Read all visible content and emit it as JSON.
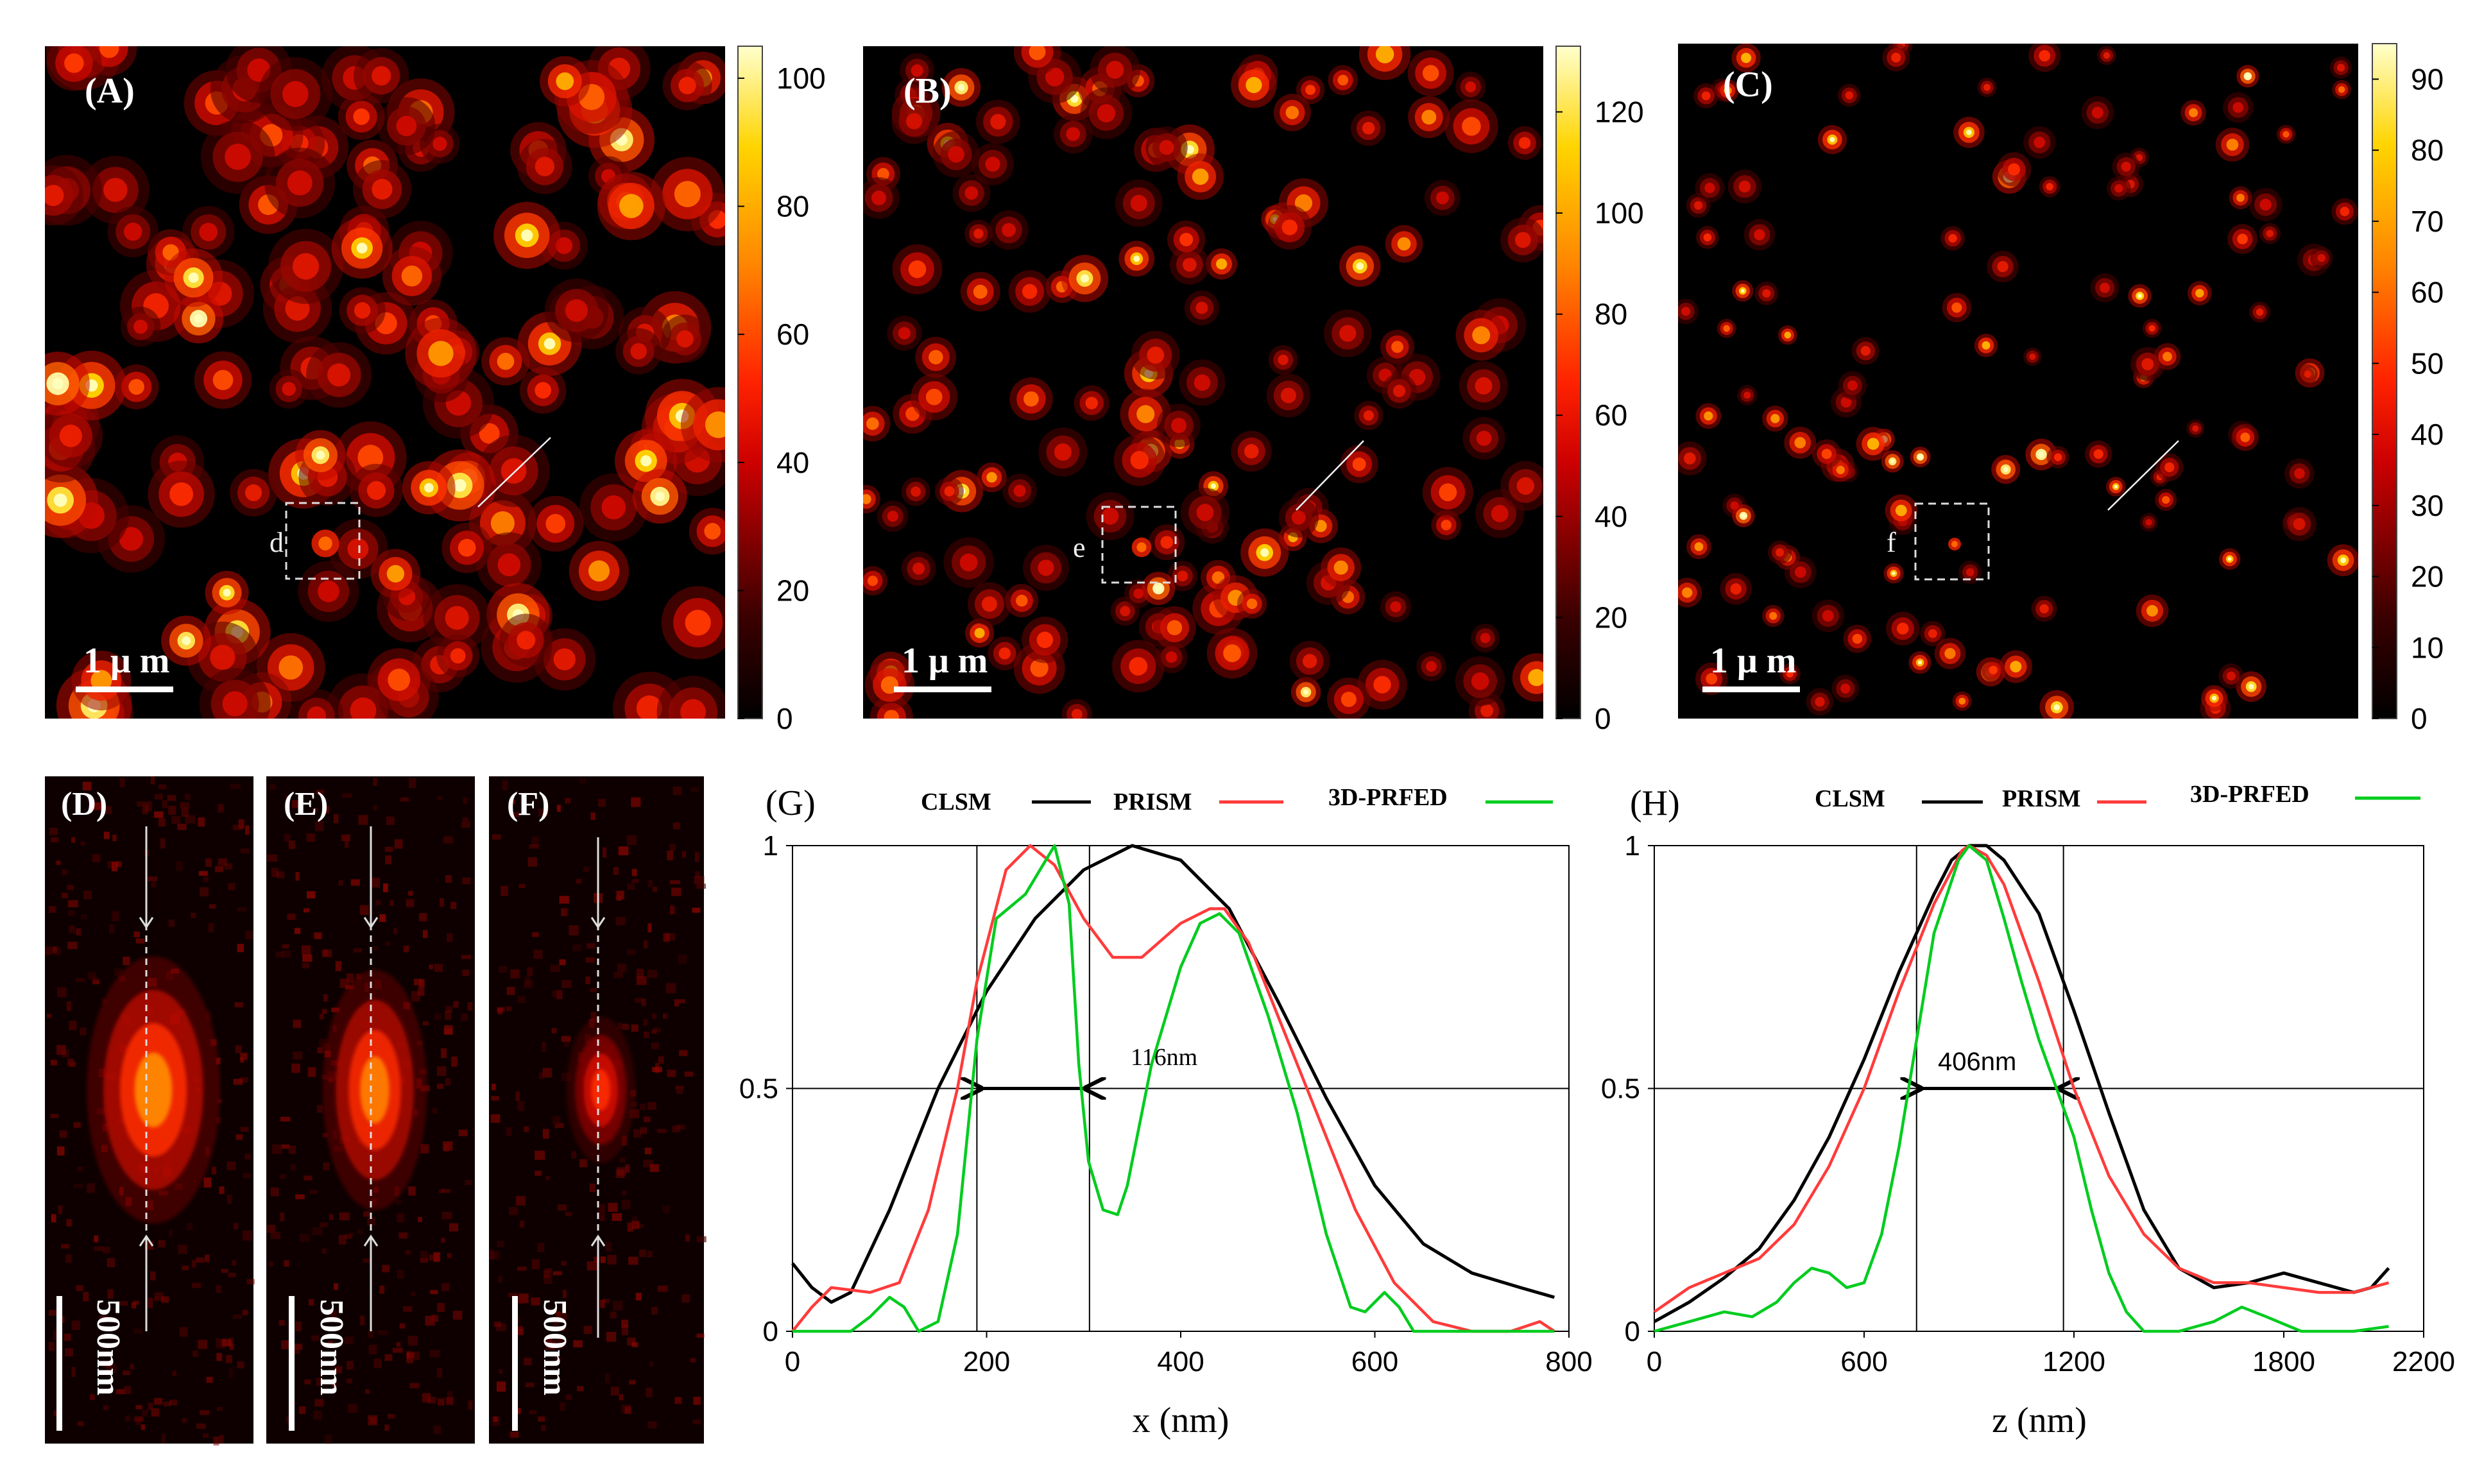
{
  "panels": {
    "A": {
      "label": "(A)",
      "roi_label": "d",
      "scale_label": "1 μ m",
      "colorbar_ticks": [
        "0",
        "20",
        "40",
        "60",
        "80",
        "100"
      ],
      "colorbar_max": 105,
      "seed": 11,
      "spot_count": 150,
      "spot_sigma": 24,
      "ring_count": 12
    },
    "B": {
      "label": "(B)",
      "roi_label": "e",
      "scale_label": "1 μ m",
      "colorbar_ticks": [
        "0",
        "20",
        "40",
        "60",
        "80",
        "100",
        "120"
      ],
      "colorbar_max": 133,
      "seed": 23,
      "spot_count": 150,
      "spot_sigma": 17,
      "ring_count": 12
    },
    "C": {
      "label": "(C)",
      "roi_label": "f",
      "scale_label": "1 μ m",
      "colorbar_ticks": [
        "0",
        "10",
        "20",
        "30",
        "40",
        "50",
        "60",
        "70",
        "80",
        "90"
      ],
      "colorbar_max": 95,
      "seed": 37,
      "spot_count": 130,
      "spot_sigma": 11,
      "ring_count": 12
    }
  },
  "zooms": {
    "D": {
      "label": "(D)",
      "scale_label": "500nm",
      "spot_rx": 0.32,
      "spot_ry": 0.2,
      "spot_intensity": 0.8
    },
    "E": {
      "label": "(E)",
      "scale_label": "500nm",
      "spot_rx": 0.25,
      "spot_ry": 0.18,
      "spot_intensity": 0.78
    },
    "F": {
      "label": "(F)",
      "scale_label": "500nm",
      "spot_rx": 0.16,
      "spot_ry": 0.11,
      "spot_intensity": 0.62
    }
  },
  "colors": {
    "CLSM": "#000000",
    "PRISM": "#ff3b3b",
    "3D-PRFED": "#00cc1e"
  },
  "chart_data": [
    {
      "id": "G",
      "panel_label": "(G)",
      "type": "line",
      "xlabel": "x (nm)",
      "ylabel": "",
      "xlim": [
        0,
        800
      ],
      "ylim": [
        0,
        1
      ],
      "xticks": [
        "0",
        "200",
        "400",
        "600",
        "800"
      ],
      "yticks": [
        "0",
        "0.5",
        "1"
      ],
      "grid": "lines at y=0.5 and y=1",
      "legend": [
        "CLSM",
        "PRISM",
        "3D-PRFED"
      ],
      "annotation": {
        "text": "116nm",
        "x_left": 190,
        "x_right": 306,
        "y": 0.5
      },
      "series": [
        {
          "name": "CLSM",
          "x": [
            0,
            20,
            40,
            60,
            100,
            150,
            200,
            250,
            300,
            350,
            400,
            450,
            500,
            550,
            600,
            650,
            700,
            750,
            785
          ],
          "y": [
            0.14,
            0.09,
            0.06,
            0.08,
            0.25,
            0.5,
            0.7,
            0.85,
            0.95,
            1,
            0.97,
            0.87,
            0.68,
            0.48,
            0.3,
            0.18,
            0.12,
            0.09,
            0.07
          ]
        },
        {
          "name": "PRISM",
          "x": [
            0,
            20,
            40,
            80,
            110,
            140,
            170,
            190,
            220,
            245,
            270,
            300,
            330,
            360,
            400,
            430,
            445,
            470,
            500,
            540,
            580,
            620,
            660,
            700,
            740,
            770,
            785
          ],
          "y": [
            0,
            0.05,
            0.09,
            0.08,
            0.1,
            0.25,
            0.5,
            0.72,
            0.95,
            1,
            0.96,
            0.85,
            0.77,
            0.77,
            0.84,
            0.87,
            0.87,
            0.8,
            0.65,
            0.45,
            0.25,
            0.1,
            0.02,
            0,
            0,
            0.02,
            0
          ]
        },
        {
          "name": "3D-PRFED",
          "x": [
            0,
            40,
            60,
            80,
            100,
            115,
            130,
            150,
            170,
            190,
            210,
            240,
            270,
            285,
            295,
            305,
            320,
            335,
            345,
            370,
            400,
            420,
            440,
            460,
            490,
            520,
            550,
            575,
            590,
            610,
            625,
            640,
            660,
            700,
            785
          ],
          "y": [
            0,
            0,
            0,
            0.03,
            0.07,
            0.05,
            0,
            0.02,
            0.2,
            0.6,
            0.85,
            0.9,
            1,
            0.88,
            0.55,
            0.35,
            0.25,
            0.24,
            0.3,
            0.55,
            0.75,
            0.84,
            0.86,
            0.82,
            0.65,
            0.45,
            0.2,
            0.05,
            0.04,
            0.08,
            0.05,
            0,
            0,
            0,
            0
          ]
        }
      ]
    },
    {
      "id": "H",
      "panel_label": "(H)",
      "type": "line",
      "xlabel": "z (nm)",
      "ylabel": "",
      "xlim": [
        0,
        2200
      ],
      "ylim": [
        0,
        1
      ],
      "xticks": [
        "0",
        "600",
        "1200",
        "1800",
        "2200"
      ],
      "xtick_values": [
        0,
        600,
        1200,
        1800,
        2200
      ],
      "yticks": [
        "0",
        "0.5",
        "1"
      ],
      "grid": "lines at y=0.5 and y=1",
      "legend": [
        "CLSM",
        "PRISM",
        "3D-PRFED"
      ],
      "annotation": {
        "text": "406nm",
        "x_left": 750,
        "x_right": 1170,
        "y": 0.5
      },
      "series": [
        {
          "name": "CLSM",
          "x": [
            0,
            100,
            200,
            300,
            400,
            500,
            600,
            700,
            800,
            850,
            900,
            950,
            1000,
            1100,
            1200,
            1300,
            1400,
            1500,
            1600,
            1700,
            1800,
            1900,
            2000,
            2050,
            2100
          ],
          "y": [
            0.02,
            0.06,
            0.11,
            0.17,
            0.27,
            0.4,
            0.56,
            0.74,
            0.9,
            0.97,
            1,
            1,
            0.97,
            0.86,
            0.66,
            0.45,
            0.25,
            0.13,
            0.09,
            0.1,
            0.12,
            0.1,
            0.08,
            0.09,
            0.13
          ]
        },
        {
          "name": "PRISM",
          "x": [
            0,
            100,
            200,
            300,
            400,
            500,
            600,
            700,
            800,
            880,
            900,
            950,
            1000,
            1100,
            1200,
            1300,
            1400,
            1500,
            1600,
            1700,
            1800,
            1900,
            2000,
            2100
          ],
          "y": [
            0.04,
            0.09,
            0.12,
            0.15,
            0.22,
            0.34,
            0.5,
            0.7,
            0.88,
            0.99,
            1,
            0.98,
            0.92,
            0.72,
            0.5,
            0.32,
            0.2,
            0.13,
            0.1,
            0.1,
            0.09,
            0.08,
            0.08,
            0.1
          ]
        },
        {
          "name": "3D-PRFED",
          "x": [
            0,
            100,
            200,
            280,
            350,
            400,
            450,
            500,
            550,
            600,
            650,
            700,
            750,
            800,
            870,
            900,
            950,
            1000,
            1050,
            1100,
            1150,
            1200,
            1250,
            1300,
            1350,
            1400,
            1500,
            1600,
            1680,
            1750,
            1850,
            2000,
            2100
          ],
          "y": [
            0,
            0.02,
            0.04,
            0.03,
            0.06,
            0.1,
            0.13,
            0.12,
            0.09,
            0.1,
            0.2,
            0.38,
            0.6,
            0.82,
            0.97,
            1,
            0.97,
            0.85,
            0.72,
            0.6,
            0.5,
            0.4,
            0.25,
            0.12,
            0.04,
            0,
            0,
            0.02,
            0.05,
            0.03,
            0,
            0,
            0.01
          ]
        }
      ]
    }
  ]
}
